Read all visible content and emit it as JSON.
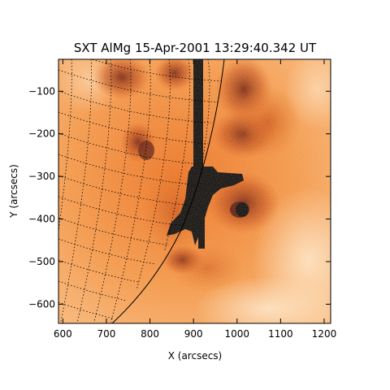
{
  "title": "SXT AlMg 15-Apr-2001 13:29:40.342 UT",
  "xlabel": "X (arcsecs)",
  "ylabel": "Y (arcsecs)",
  "x_ticks": [
    "600",
    "700",
    "800",
    "900",
    "1000",
    "1100",
    "1200"
  ],
  "y_ticks": [
    "−100",
    "−200",
    "−300",
    "−400",
    "−500",
    "−600"
  ],
  "x_tick_values": [
    600,
    700,
    800,
    900,
    1000,
    1100,
    1200
  ],
  "y_tick_values": [
    -100,
    -200,
    -300,
    -400,
    -500,
    -600
  ],
  "x_range": [
    590,
    1215
  ],
  "y_range": [
    -645,
    -25
  ],
  "colors": {
    "background": "#ffffff",
    "image_base": "#f59a4a",
    "image_bright": "#fbd6a8",
    "image_dark": "#7a1e04",
    "saturated": "#000000",
    "axis": "#000000"
  }
}
